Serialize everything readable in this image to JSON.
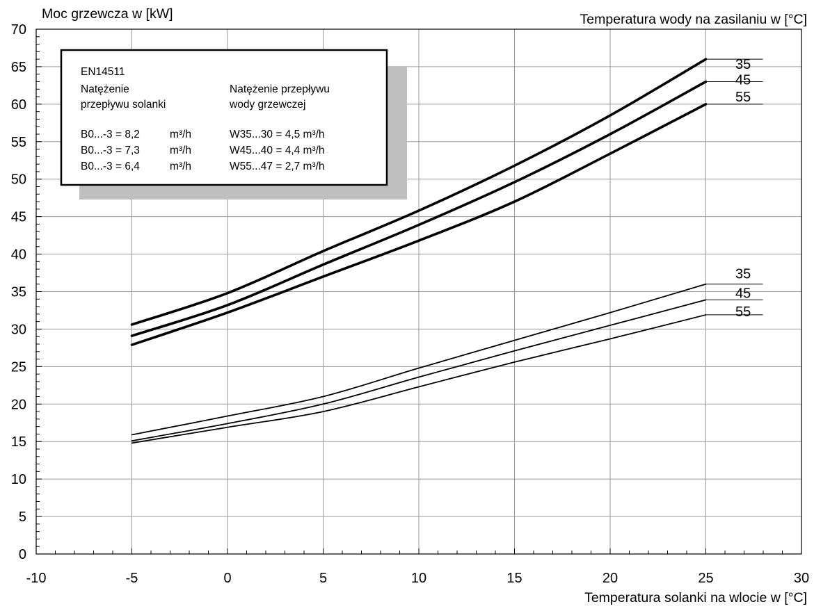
{
  "chart_data": {
    "type": "line",
    "ylabel": "Moc grzewcza w [kW]",
    "xlabel": "Temperatura solanki na wlocie w [°C]",
    "series_header": "Temperatura wody na zasilaniu w [°C]",
    "xlim": [
      -10,
      30
    ],
    "ylim": [
      0,
      70
    ],
    "x_ticks": [
      "-10",
      "-5",
      "0",
      "5",
      "10",
      "15",
      "20",
      "25",
      "30"
    ],
    "y_ticks": [
      "0",
      "5",
      "10",
      "15",
      "20",
      "25",
      "30",
      "35",
      "40",
      "45",
      "50",
      "55",
      "60",
      "65",
      "70"
    ],
    "grid": true,
    "series": [
      {
        "name": "35",
        "group": "thick",
        "x": [
          -5,
          0,
          5,
          10,
          15,
          20,
          25
        ],
        "values": [
          30.6,
          34.8,
          40.4,
          45.8,
          51.8,
          58.5,
          66.0
        ]
      },
      {
        "name": "45",
        "group": "thick",
        "x": [
          -5,
          0,
          5,
          10,
          15,
          20,
          25
        ],
        "values": [
          29.1,
          33.2,
          38.6,
          43.9,
          49.6,
          56.0,
          63.0
        ]
      },
      {
        "name": "55",
        "group": "thick",
        "x": [
          -5,
          0,
          5,
          10,
          15,
          20,
          25
        ],
        "values": [
          27.9,
          32.2,
          37.0,
          41.8,
          47.0,
          53.4,
          60.0
        ]
      },
      {
        "name": "35",
        "group": "thin",
        "x": [
          -5,
          0,
          5,
          10,
          15,
          20,
          25
        ],
        "values": [
          15.9,
          18.4,
          21.0,
          24.8,
          28.5,
          32.2,
          36.0
        ]
      },
      {
        "name": "45",
        "group": "thin",
        "x": [
          -5,
          0,
          5,
          10,
          15,
          20,
          25
        ],
        "values": [
          15.1,
          17.4,
          20.0,
          23.6,
          27.1,
          30.5,
          33.9
        ]
      },
      {
        "name": "55",
        "group": "thin",
        "x": [
          -5,
          0,
          5,
          10,
          15,
          20,
          25
        ],
        "values": [
          14.8,
          16.9,
          19.0,
          22.3,
          25.6,
          28.7,
          31.9
        ]
      }
    ],
    "annotation": {
      "title": "EN14511",
      "col1_header_line1": "Natężenie",
      "col1_header_line2": "przepływu solanki",
      "col2_header_line1": "Natężenie przepływu",
      "col2_header_line2": "wody grzewczej",
      "rows": [
        {
          "left": "B0...-3 = 8,2",
          "unit": "m³/h",
          "right": "W35...30 = 4,5 m³/h"
        },
        {
          "left": "B0...-3 = 7,3",
          "unit": "m³/h",
          "right": "W45...40 = 4,4 m³/h"
        },
        {
          "left": "B0...-3 = 6,4",
          "unit": "m³/h",
          "right": "W55...47 = 2,7 m³/h"
        }
      ]
    }
  }
}
